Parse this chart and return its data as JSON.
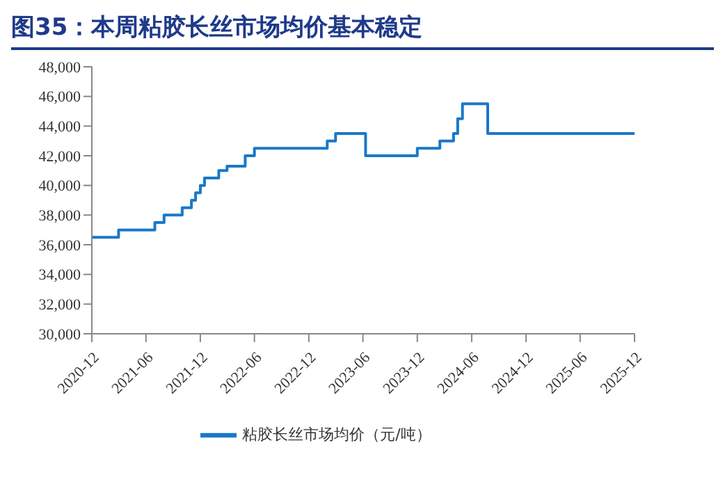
{
  "chart_data": {
    "type": "step",
    "title": "图35：本周粘胶长丝市场均价基本稳定",
    "x": [
      "2020-12-01",
      "2021-03-01",
      "2021-07-01",
      "2021-08-01",
      "2021-10-01",
      "2021-11-01",
      "2021-11-15",
      "2021-12-01",
      "2021-12-15",
      "2022-02-01",
      "2022-03-01",
      "2022-05-01",
      "2022-06-01",
      "2023-02-01",
      "2023-03-01",
      "2023-06-10",
      "2023-12-01",
      "2024-02-15",
      "2024-04-01",
      "2024-04-15",
      "2024-05-01",
      "2024-07-25",
      "2025-12-01"
    ],
    "series": [
      {
        "name": "粘胶长丝市场均价（元/吨）",
        "color": "#1a78c8",
        "values": [
          36500,
          37000,
          37500,
          38000,
          38500,
          39000,
          39500,
          40000,
          40500,
          41000,
          41300,
          42000,
          42500,
          43000,
          43500,
          42000,
          42500,
          43000,
          43500,
          44500,
          45500,
          43500,
          43500
        ]
      }
    ],
    "ylim": [
      30000,
      48000
    ],
    "yticks": [
      {
        "value": 30000,
        "label": "30,000"
      },
      {
        "value": 32000,
        "label": "32,000"
      },
      {
        "value": 34000,
        "label": "34,000"
      },
      {
        "value": 36000,
        "label": "36,000"
      },
      {
        "value": 38000,
        "label": "38,000"
      },
      {
        "value": 40000,
        "label": "40,000"
      },
      {
        "value": 42000,
        "label": "42,000"
      },
      {
        "value": 44000,
        "label": "44,000"
      },
      {
        "value": 46000,
        "label": "46,000"
      },
      {
        "value": 48000,
        "label": "48,000"
      }
    ],
    "xlim": [
      "2020-12",
      "2025-12"
    ],
    "xticks": [
      "2020-12",
      "2021-06",
      "2021-12",
      "2022-06",
      "2022-12",
      "2023-06",
      "2023-12",
      "2024-06",
      "2024-12",
      "2025-06",
      "2025-12"
    ],
    "grid": false,
    "legend": "bottom",
    "marker": "none",
    "line_style": "solid"
  }
}
